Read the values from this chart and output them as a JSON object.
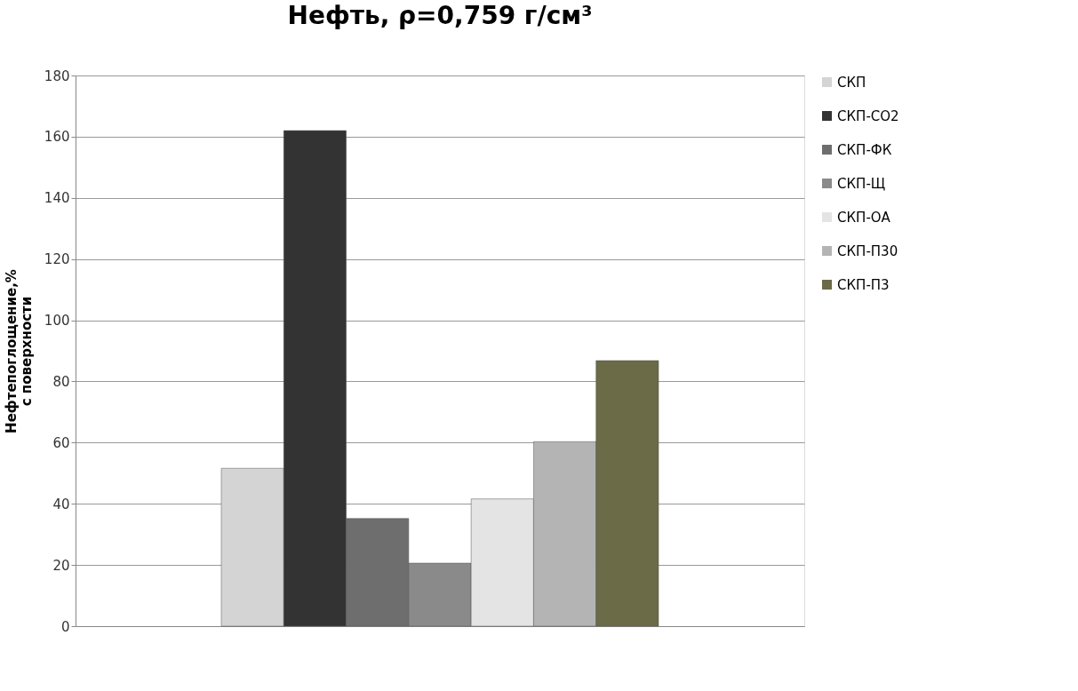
{
  "chart_data": {
    "type": "bar",
    "title": "Нефть, ρ=0,759 г/см³",
    "ylabel": "Нефтепоглощение,%\nс поверхности",
    "categories": [
      null
    ],
    "series": [
      {
        "name": "СКП",
        "color": "#d4d4d4",
        "values": [
          51.6
        ]
      },
      {
        "name": "СКП-СО2",
        "color": "#333333",
        "values": [
          162
        ]
      },
      {
        "name": "СКП-ФК",
        "color": "#6e6e6e",
        "values": [
          35.2
        ]
      },
      {
        "name": "СКП-Щ",
        "color": "#8a8a8a",
        "values": [
          20.6
        ]
      },
      {
        "name": "СКП-ОА",
        "color": "#e4e4e4",
        "values": [
          41.6
        ]
      },
      {
        "name": "СКП-П30",
        "color": "#b4b4b4",
        "values": [
          60.3
        ]
      },
      {
        "name": "СКП-П3",
        "color": "#6b6b48",
        "values": [
          86.8
        ]
      }
    ],
    "ylim": [
      0,
      180
    ],
    "yticks": [
      0,
      20,
      40,
      60,
      80,
      100,
      120,
      140,
      160,
      180
    ],
    "grid": "y",
    "legend": "right"
  }
}
